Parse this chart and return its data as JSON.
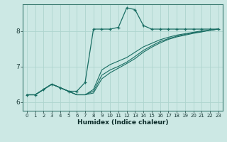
{
  "xlabel": "Humidex (Indice chaleur)",
  "bg_color": "#cce8e4",
  "line_color": "#1a6e64",
  "grid_color": "#aed4ce",
  "axis_bg": "#cce8e4",
  "xlim": [
    0,
    23
  ],
  "ylim": [
    5.75,
    8.75
  ],
  "yticks": [
    6,
    7,
    8
  ],
  "xtick_labels": [
    "0",
    "1",
    "2",
    "3",
    "4",
    "5",
    "6",
    "7",
    "8",
    "9",
    "10",
    "11",
    "12",
    "13",
    "14",
    "15",
    "16",
    "17",
    "18",
    "19",
    "20",
    "21",
    "22",
    "23"
  ],
  "xtick_positions": [
    0,
    1,
    2,
    3,
    4,
    5,
    6,
    7,
    8,
    9,
    10,
    11,
    12,
    13,
    14,
    15,
    16,
    17,
    18,
    19,
    20,
    21,
    22,
    23
  ],
  "series_marked": {
    "x": [
      0,
      1,
      2,
      3,
      4,
      5,
      6,
      7,
      8,
      9,
      10,
      11,
      12,
      13,
      14,
      15,
      16,
      17,
      18,
      19,
      20,
      21,
      22,
      23
    ],
    "y": [
      6.2,
      6.2,
      6.35,
      6.5,
      6.4,
      6.3,
      6.3,
      6.55,
      8.05,
      8.05,
      8.05,
      8.1,
      8.65,
      8.6,
      8.15,
      8.05,
      8.05,
      8.05,
      8.05,
      8.05,
      8.05,
      8.05,
      8.05,
      8.05
    ]
  },
  "series_smooth": [
    {
      "x": [
        0,
        1,
        2,
        3,
        4,
        5,
        6,
        7,
        8,
        9,
        10,
        11,
        12,
        13,
        14,
        15,
        16,
        17,
        18,
        19,
        20,
        21,
        22,
        23
      ],
      "y": [
        6.2,
        6.2,
        6.35,
        6.5,
        6.4,
        6.3,
        6.2,
        6.2,
        6.35,
        6.9,
        7.05,
        7.15,
        7.25,
        7.4,
        7.55,
        7.65,
        7.75,
        7.82,
        7.88,
        7.92,
        7.96,
        8.0,
        8.02,
        8.05
      ]
    },
    {
      "x": [
        0,
        1,
        2,
        3,
        4,
        5,
        6,
        7,
        8,
        9,
        10,
        11,
        12,
        13,
        14,
        15,
        16,
        17,
        18,
        19,
        20,
        21,
        22,
        23
      ],
      "y": [
        6.2,
        6.2,
        6.35,
        6.5,
        6.4,
        6.3,
        6.2,
        6.2,
        6.3,
        6.75,
        6.9,
        7.0,
        7.12,
        7.28,
        7.45,
        7.58,
        7.7,
        7.78,
        7.85,
        7.9,
        7.95,
        7.98,
        8.02,
        8.05
      ]
    },
    {
      "x": [
        0,
        1,
        2,
        3,
        4,
        5,
        6,
        7,
        8,
        9,
        10,
        11,
        12,
        13,
        14,
        15,
        16,
        17,
        18,
        19,
        20,
        21,
        22,
        23
      ],
      "y": [
        6.2,
        6.2,
        6.35,
        6.5,
        6.4,
        6.3,
        6.2,
        6.2,
        6.25,
        6.65,
        6.82,
        6.95,
        7.08,
        7.22,
        7.4,
        7.54,
        7.66,
        7.76,
        7.83,
        7.88,
        7.93,
        7.97,
        8.02,
        8.05
      ]
    }
  ]
}
